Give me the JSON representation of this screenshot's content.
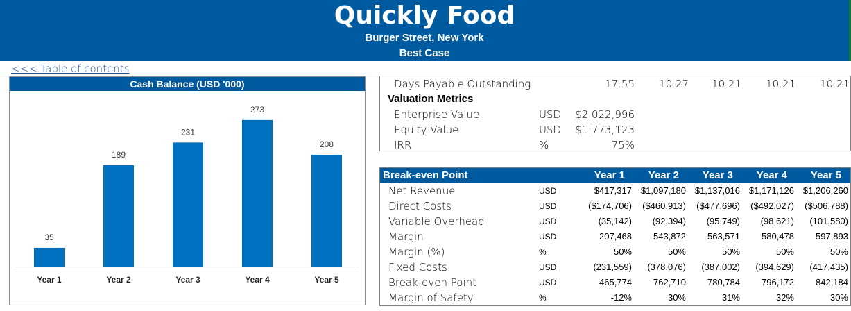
{
  "header": {
    "title": "Quickly Food",
    "address": "Burger Street, New York",
    "scenario": "Best Case"
  },
  "toc_link": "<<< Table of contents",
  "chart_data": {
    "type": "bar",
    "title": "Cash Balance (USD '000)",
    "categories": [
      "Year 1",
      "Year 2",
      "Year 3",
      "Year 4",
      "Year 5"
    ],
    "values": [
      35,
      189,
      231,
      273,
      208
    ],
    "ylim": [
      0,
      300
    ],
    "xlabel": "",
    "ylabel": "",
    "bar_color": "#0070c0",
    "grid": false,
    "legend": "none"
  },
  "upper_table": {
    "dpo_label": "Days Payable Outstanding",
    "dpo_values": [
      "17.55",
      "10.27",
      "10.21",
      "10.21",
      "10.21"
    ],
    "valuation_header": "Valuation Metrics",
    "metrics": [
      {
        "label": "Enterprise Value",
        "unit": "USD",
        "value": "$2,022,996"
      },
      {
        "label": "Equity Value",
        "unit": "USD",
        "value": "$1,773,123"
      },
      {
        "label": "IRR",
        "unit": "%",
        "value": "75%"
      }
    ]
  },
  "breakeven": {
    "title": "Break-even Point",
    "years": [
      "Year 1",
      "Year 2",
      "Year 3",
      "Year 4",
      "Year 5"
    ],
    "rows": [
      {
        "label": "Net Revenue",
        "unit": "USD",
        "values": [
          "$417,317",
          "$1,097,180",
          "$1,137,016",
          "$1,171,126",
          "$1,206,260"
        ]
      },
      {
        "label": "Direct Costs",
        "unit": "USD",
        "values": [
          "($174,706)",
          "($460,913)",
          "($477,696)",
          "($492,027)",
          "($506,788)"
        ]
      },
      {
        "label": "Variable Overhead",
        "unit": "USD",
        "values": [
          "(35,142)",
          "(92,394)",
          "(95,749)",
          "(98,621)",
          "(101,580)"
        ]
      },
      {
        "label": "Margin",
        "unit": "USD",
        "values": [
          "207,468",
          "543,872",
          "563,571",
          "580,478",
          "597,893"
        ]
      },
      {
        "label": "Margin (%)",
        "unit": "%",
        "values": [
          "50%",
          "50%",
          "50%",
          "50%",
          "50%"
        ]
      },
      {
        "label": "Fixed Costs",
        "unit": "USD",
        "values": [
          "(231,559)",
          "(378,076)",
          "(387,002)",
          "(394,629)",
          "(417,435)"
        ]
      },
      {
        "label": "Break-even Point",
        "unit": "USD",
        "values": [
          "465,774",
          "762,710",
          "780,784",
          "796,172",
          "842,184"
        ]
      },
      {
        "label": "Margin of Safety",
        "unit": "%",
        "values": [
          "-12%",
          "30%",
          "31%",
          "32%",
          "30%"
        ]
      }
    ]
  },
  "colors": {
    "header_bg": "#005aa0",
    "accent": "#0070c0",
    "link": "#1f4e9c"
  }
}
